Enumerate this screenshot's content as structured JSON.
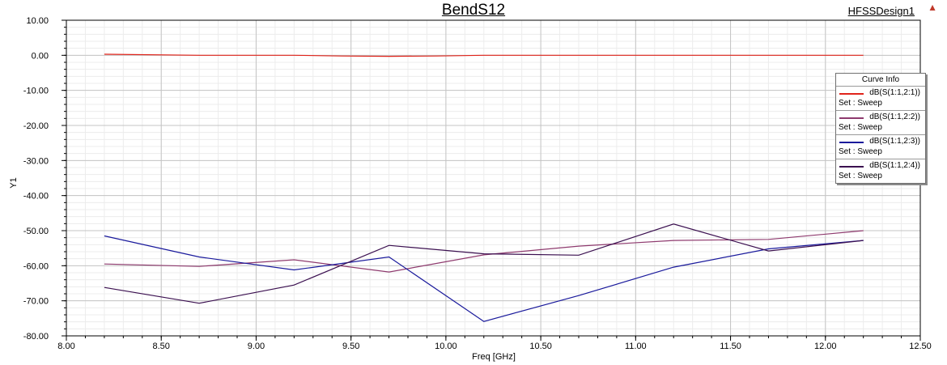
{
  "window": {
    "design_name": "HFSSDesign1"
  },
  "chart_data": {
    "type": "line",
    "title": "BendS12",
    "xlabel": "Freq [GHz]",
    "ylabel": "Y1",
    "xlim": [
      8.0,
      12.5
    ],
    "ylim": [
      -80.0,
      10.0
    ],
    "x_ticks": [
      "8.00",
      "8.50",
      "9.00",
      "9.50",
      "10.00",
      "10.50",
      "11.00",
      "11.50",
      "12.00",
      "12.50"
    ],
    "y_ticks": [
      "10.00",
      "0.00",
      "-10.00",
      "-20.00",
      "-30.00",
      "-40.00",
      "-50.00",
      "-60.00",
      "-70.00",
      "-80.00"
    ],
    "grid": true,
    "legend_title": "Curve Info",
    "legend_position": "right",
    "series": [
      {
        "name": "dB(S(1:1,2:1))",
        "set": "Set : Sweep",
        "color": "#e0241b",
        "x": [
          8.2,
          8.7,
          9.2,
          9.45,
          9.7,
          9.95,
          10.2,
          10.7,
          11.2,
          11.7,
          12.2
        ],
        "y": [
          0.3,
          0.0,
          0.0,
          -0.2,
          -0.3,
          -0.2,
          0.0,
          0.0,
          0.0,
          0.0,
          0.0
        ]
      },
      {
        "name": "dB(S(1:1,2:2))",
        "set": "Set : Sweep",
        "color": "#8e3a6e",
        "x": [
          8.2,
          8.7,
          9.2,
          9.7,
          10.2,
          10.7,
          11.2,
          11.7,
          12.2
        ],
        "y": [
          -59.5,
          -60.2,
          -58.3,
          -61.8,
          -56.9,
          -54.4,
          -52.8,
          -52.5,
          -50.0
        ]
      },
      {
        "name": "dB(S(1:1,2:3))",
        "set": "Set : Sweep",
        "color": "#1a1a9c",
        "x": [
          8.2,
          8.7,
          9.2,
          9.7,
          10.2,
          10.7,
          11.2,
          11.7,
          12.2
        ],
        "y": [
          -51.5,
          -57.5,
          -61.2,
          -57.5,
          -75.9,
          -68.5,
          -60.4,
          -55.2,
          -52.8
        ]
      },
      {
        "name": "dB(S(1:1,2:4))",
        "set": "Set : Sweep",
        "color": "#3b1050",
        "x": [
          8.2,
          8.7,
          9.2,
          9.7,
          10.2,
          10.7,
          11.2,
          11.7,
          12.2
        ],
        "y": [
          -66.2,
          -70.7,
          -65.5,
          -54.2,
          -56.6,
          -57.0,
          -48.1,
          -55.8,
          -52.8
        ]
      }
    ]
  }
}
